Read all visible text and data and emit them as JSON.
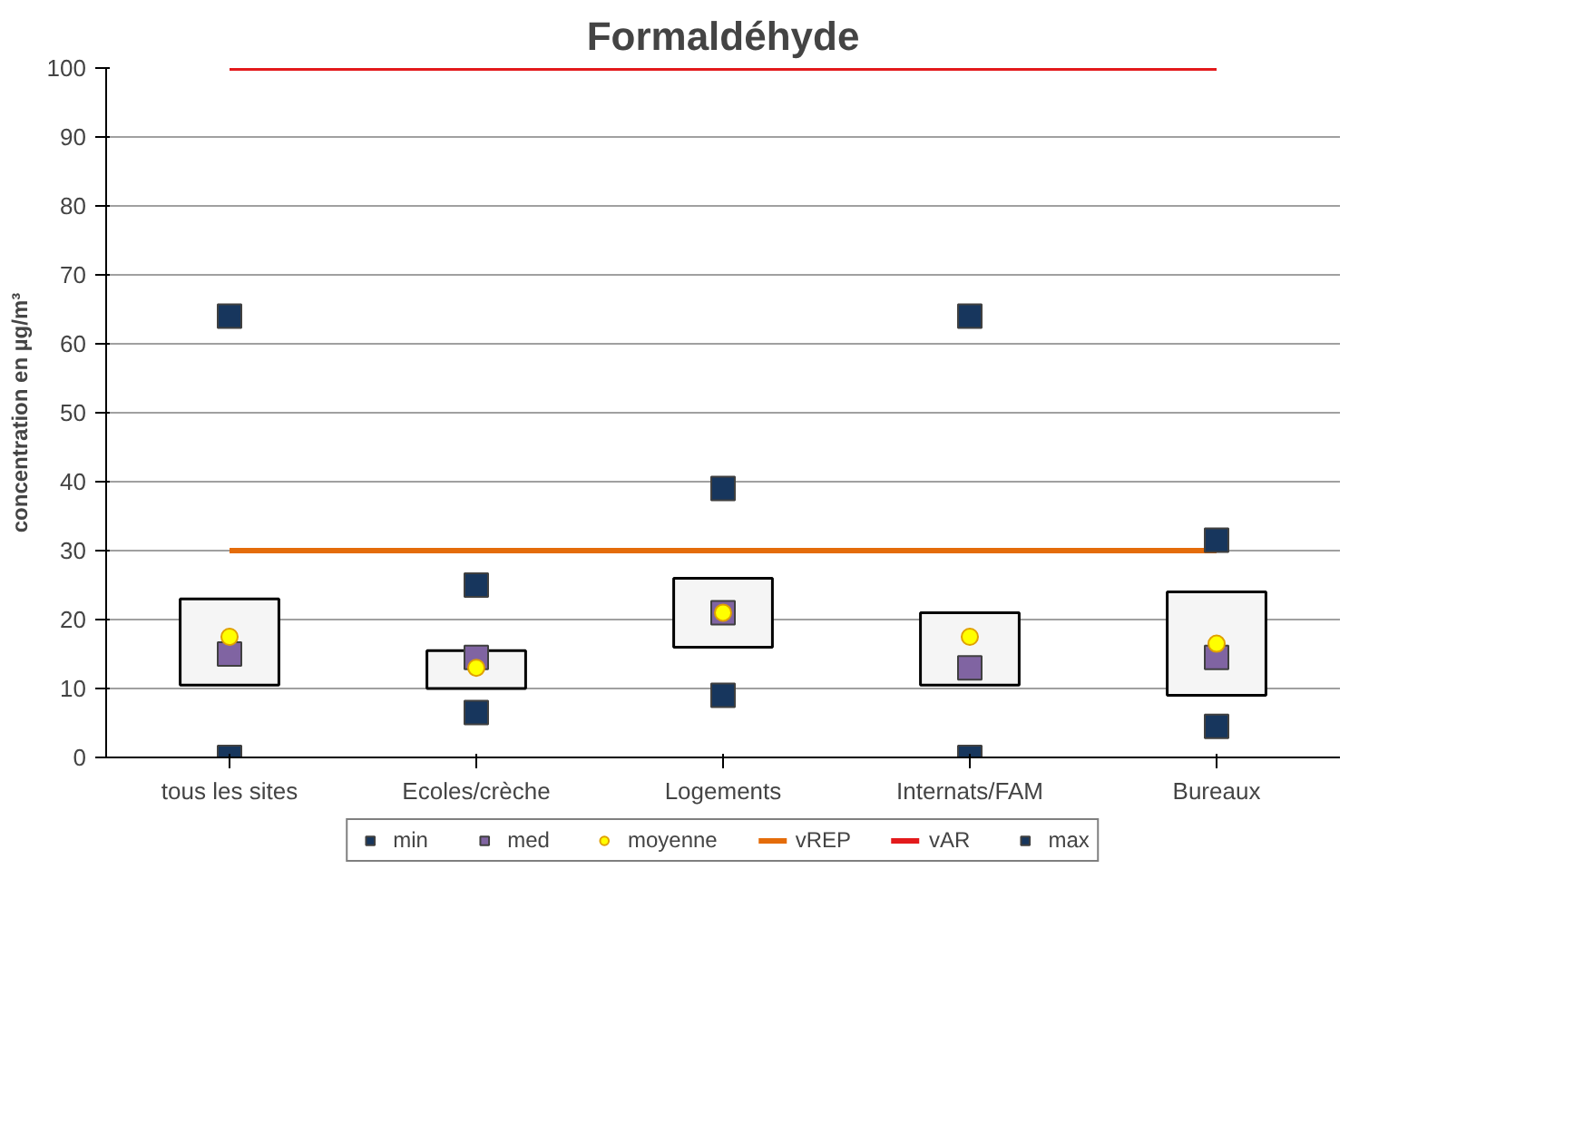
{
  "chart_data": {
    "type": "scatter",
    "title": "Formaldéhyde",
    "ylabel": "concentration en µg/m³",
    "categories": [
      "tous les sites",
      "Ecoles/crèche",
      "Logements",
      "Internats/FAM",
      "Bureaux"
    ],
    "ylim": [
      0,
      100
    ],
    "yticks": [
      0,
      10,
      20,
      30,
      40,
      50,
      60,
      70,
      80,
      90,
      100
    ],
    "grid": "y",
    "legend": "bottom",
    "series": [
      {
        "type": "bar",
        "color": "#f5f5f5",
        "base": [
          10.5,
          10,
          16,
          10.5,
          9
        ],
        "values": [
          12.5,
          5.5,
          10,
          10.5,
          15
        ]
      },
      {
        "name": "min",
        "marker": "square",
        "color": "#17365d",
        "values": [
          0,
          6.5,
          9,
          0,
          4.5
        ]
      },
      {
        "name": "med",
        "marker": "square",
        "color": "#8064a2",
        "values": [
          15,
          14.5,
          21,
          13,
          14.5
        ]
      },
      {
        "name": "moyenne",
        "marker": "circle",
        "color": "#ffff00",
        "values": [
          17.5,
          13,
          21,
          17.5,
          16.5
        ]
      },
      {
        "name": "vREP",
        "type": "line",
        "color": "#e46c0a",
        "values": [
          30,
          30,
          30,
          30,
          30
        ]
      },
      {
        "name": "vAR",
        "type": "line",
        "color": "#e31a1c",
        "values": [
          100,
          100,
          100,
          100,
          100
        ]
      },
      {
        "name": "max",
        "marker": "square",
        "color": "#17365d",
        "values": [
          64,
          25,
          39,
          64,
          31.5
        ]
      }
    ]
  }
}
